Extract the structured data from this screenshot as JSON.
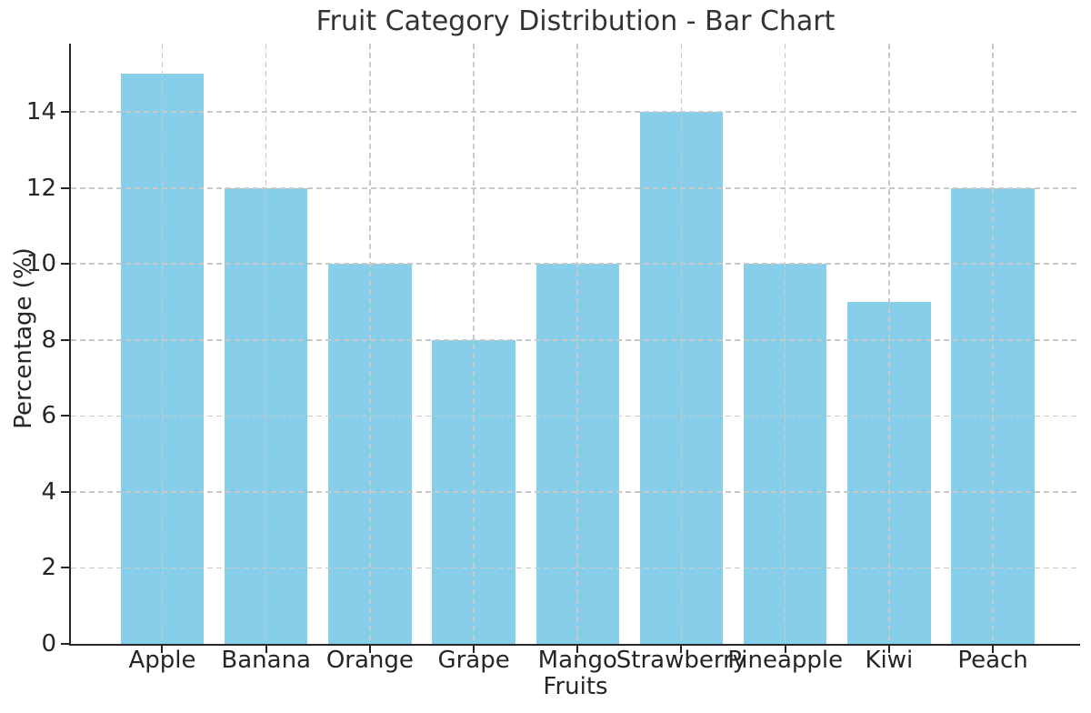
{
  "page": {
    "background": "#ffffff",
    "kind": "matplotlib-style bar chart figure"
  },
  "chart_data": {
    "type": "bar",
    "title": "Fruit Category Distribution - Bar Chart",
    "xlabel": "Fruits",
    "ylabel": "Percentage (%)",
    "categories": [
      "Apple",
      "Banana",
      "Orange",
      "Grape",
      "Mango",
      "Strawberry",
      "Pineapple",
      "Kiwi",
      "Peach"
    ],
    "values": [
      15,
      12,
      10,
      8,
      10,
      14,
      10,
      9,
      12
    ],
    "yticks": [
      0,
      2,
      4,
      6,
      8,
      10,
      12,
      14
    ],
    "ylim": [
      0,
      15.8
    ],
    "bar_color": "#87ceeb",
    "grid_color": "#c9c9c9",
    "axis_color": "#262626",
    "text_color": "#262626",
    "title_color": "#333333",
    "grid_style": "dashed",
    "grid_lines": "horizontal and vertical, drawn above bars",
    "spines": "left and bottom only",
    "legend": "none"
  }
}
